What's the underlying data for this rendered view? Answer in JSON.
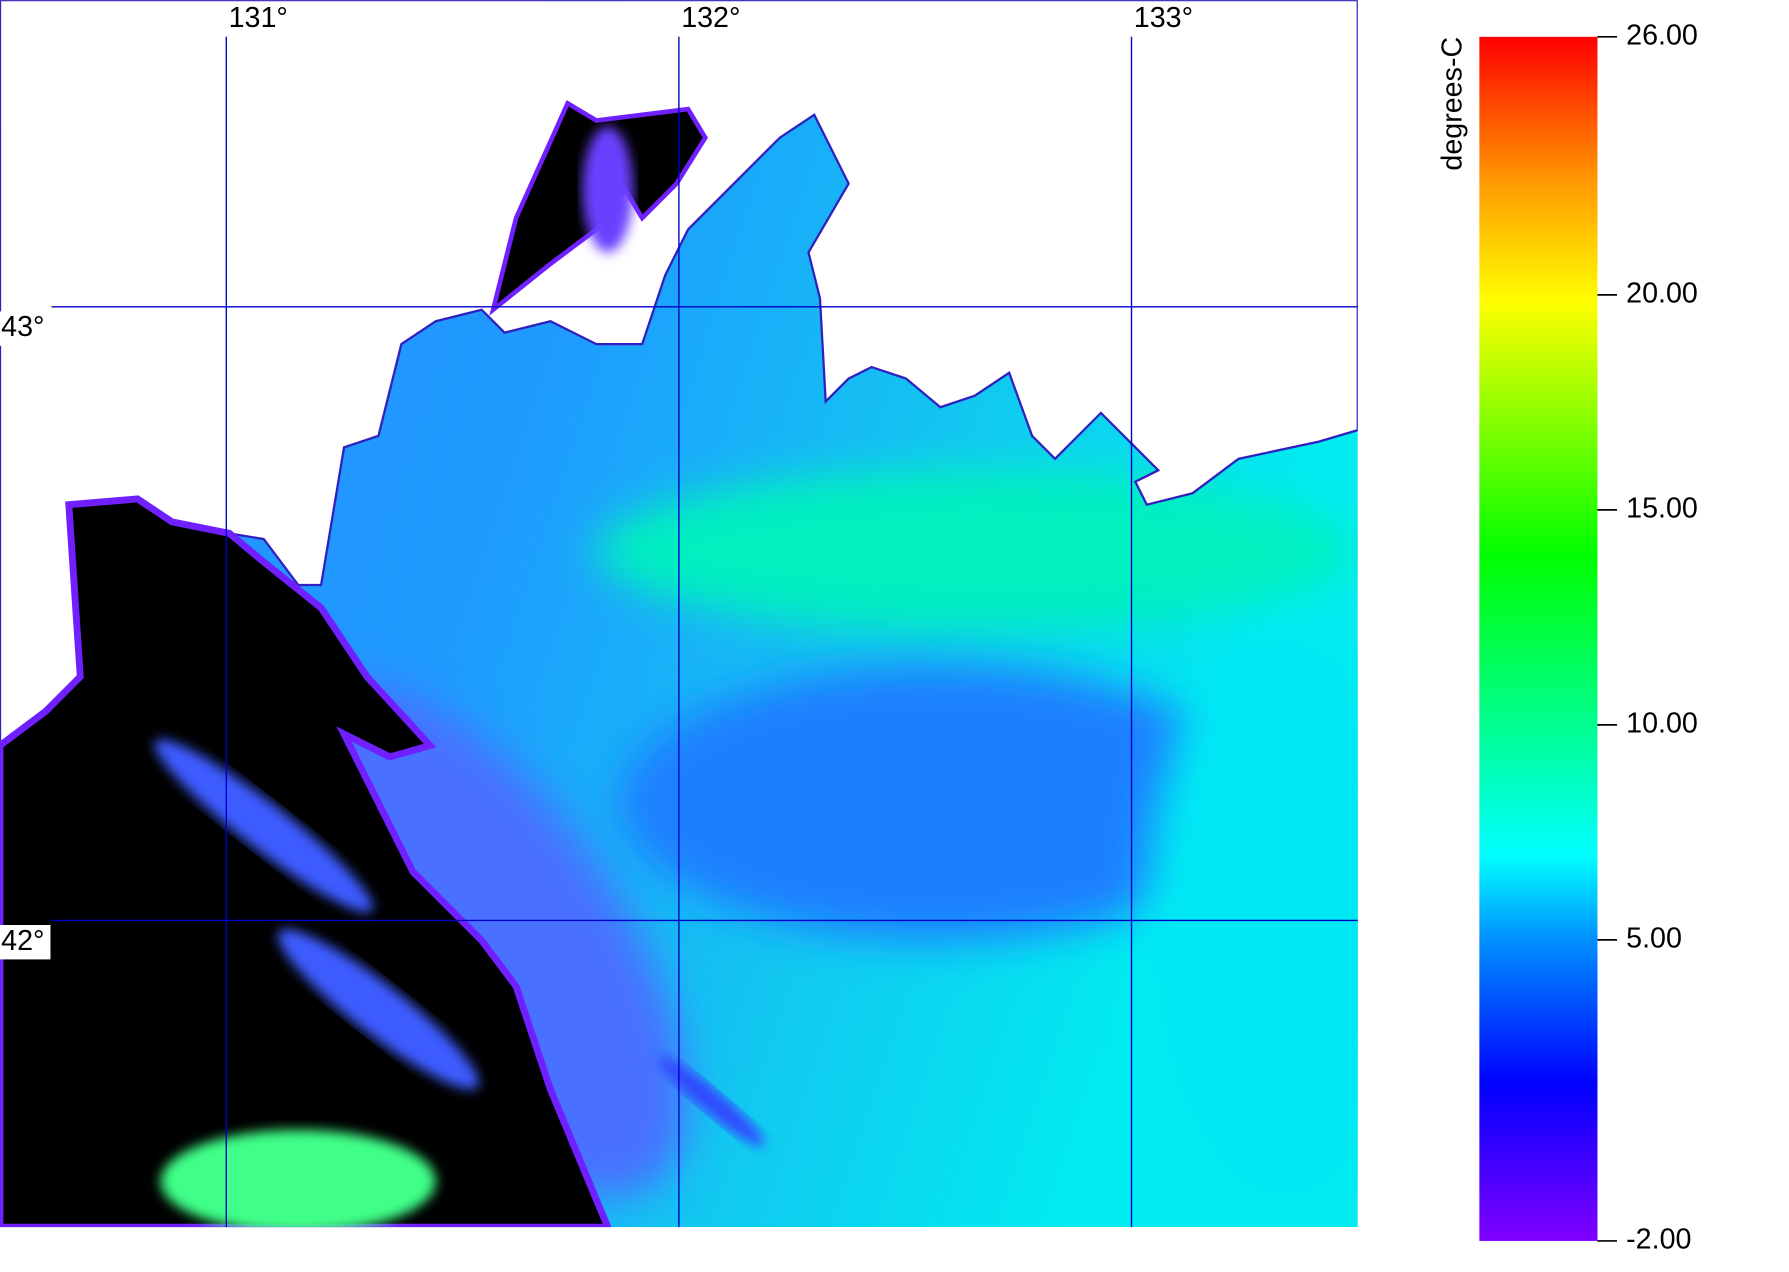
{
  "map": {
    "lonlim": [
      130.5,
      133.5
    ],
    "latlim": [
      41.5,
      43.5
    ],
    "lon_ticks": [
      {
        "value": 131,
        "label": "131°"
      },
      {
        "value": 132,
        "label": "132°"
      },
      {
        "value": 133,
        "label": "133°"
      }
    ],
    "lat_ticks": [
      {
        "value": 43,
        "label": "43°"
      },
      {
        "value": 42,
        "label": "42°"
      }
    ],
    "colorbar": {
      "label": "degrees-C",
      "range": [
        -2,
        26
      ],
      "ticks": [
        {
          "value": 26,
          "label": "26.00"
        },
        {
          "value": 20,
          "label": "20.00"
        },
        {
          "value": 15,
          "label": "15.00"
        },
        {
          "value": 10,
          "label": "10.00"
        },
        {
          "value": 5,
          "label": "5.00"
        },
        {
          "value": -2,
          "label": "-2.00"
        }
      ]
    }
  }
}
